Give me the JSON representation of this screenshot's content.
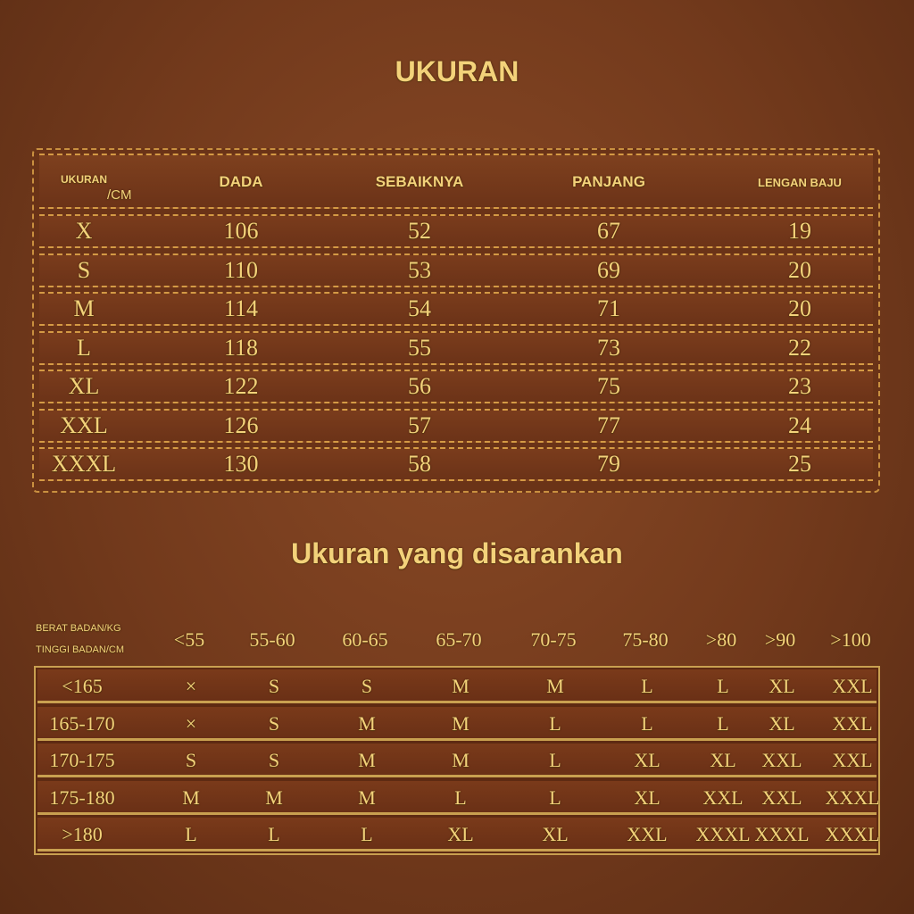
{
  "title": "UKURAN",
  "size_table": {
    "corner_top": "UKURAN",
    "corner_bottom": "/CM",
    "headers": [
      "DADA",
      "SEBAIKNYA",
      "PANJANG",
      "LENGAN BAJU"
    ],
    "rows": [
      [
        "X",
        "106",
        "52",
        "67",
        "19"
      ],
      [
        "S",
        "110",
        "53",
        "69",
        "20"
      ],
      [
        "M",
        "114",
        "54",
        "71",
        "20"
      ],
      [
        "L",
        "118",
        "55",
        "73",
        "22"
      ],
      [
        "XL",
        "122",
        "56",
        "75",
        "23"
      ],
      [
        "XXL",
        "126",
        "57",
        "77",
        "24"
      ],
      [
        "XXXL",
        "130",
        "58",
        "79",
        "25"
      ]
    ]
  },
  "recommend_title": "Ukuran yang disarankan",
  "recommend_table": {
    "corner_top": "BERAT BADAN/KG",
    "corner_bottom": "TINGGI BADAN/CM",
    "weights": [
      "<55",
      "55-60",
      "60-65",
      "65-70",
      "70-75",
      "75-80",
      ">80",
      ">90",
      ">100"
    ],
    "rows": [
      {
        "height": "<165",
        "sizes": [
          "×",
          "S",
          "S",
          "M",
          "M",
          "L",
          "L",
          "XL",
          "XXL"
        ]
      },
      {
        "height": "165-170",
        "sizes": [
          "×",
          "S",
          "M",
          "M",
          "L",
          "L",
          "L",
          "XL",
          "XXL"
        ]
      },
      {
        "height": "170-175",
        "sizes": [
          "S",
          "S",
          "M",
          "M",
          "L",
          "XL",
          "XL",
          "XXL",
          "XXL"
        ]
      },
      {
        "height": "175-180",
        "sizes": [
          "M",
          "M",
          "M",
          "L",
          "L",
          "XL",
          "XXL",
          "XXL",
          "XXXL"
        ]
      },
      {
        "height": ">180",
        "sizes": [
          "L",
          "L",
          "L",
          "XL",
          "XL",
          "XXL",
          "XXXL",
          "XXXL",
          "XXXL"
        ]
      }
    ]
  },
  "colors": {
    "gold": "#f3d27a",
    "leather": "#733a1c",
    "stitch": "#d49a45"
  }
}
